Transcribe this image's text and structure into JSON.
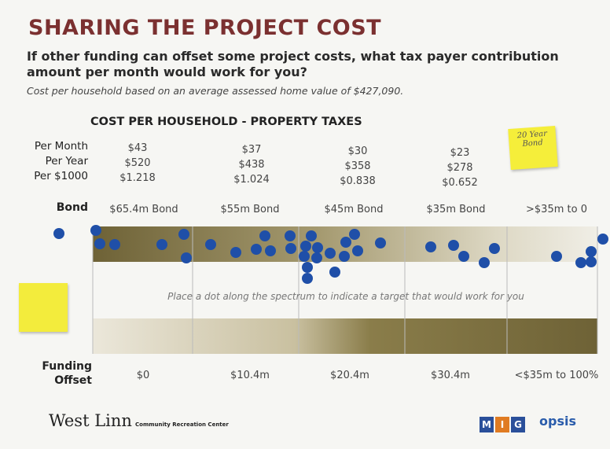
{
  "title": "SHARING THE PROJECT COST",
  "question": "If other funding can offset some project costs, what tax payer contribution amount per month would work for you?",
  "note": "Cost per household based on an average assessed home value of $427,090.",
  "table": {
    "title": "COST PER HOUSEHOLD - PROPERTY TAXES",
    "row_labels": [
      "Per Month",
      "Per Year",
      "Per $1000"
    ],
    "columns": [
      [
        "$43",
        "$520",
        "$1.218"
      ],
      [
        "$37",
        "$438",
        "$1.024"
      ],
      [
        "$30",
        "$358",
        "$0.838"
      ],
      [
        "$23",
        "$278",
        "$0.652"
      ]
    ]
  },
  "bond": {
    "label": "Bond",
    "options": [
      "$65.4m Bond",
      "$55m Bond",
      "$45m Bond",
      "$35m Bond",
      ">$35m to 0"
    ]
  },
  "instruction": "Place a dot along the spectrum to indicate a target that would work for you",
  "offset": {
    "label": [
      "Funding",
      "Offset"
    ],
    "options": [
      "$0",
      "$10.4m",
      "$20.4m",
      "$30.4m",
      "<$35m to 100%"
    ]
  },
  "sticky_note": "20 Year Bond",
  "footer": {
    "logo": "West Linn",
    "subtitle": "Community Recreation Center",
    "partners": [
      "M",
      "I",
      "G",
      "opsis"
    ]
  }
}
